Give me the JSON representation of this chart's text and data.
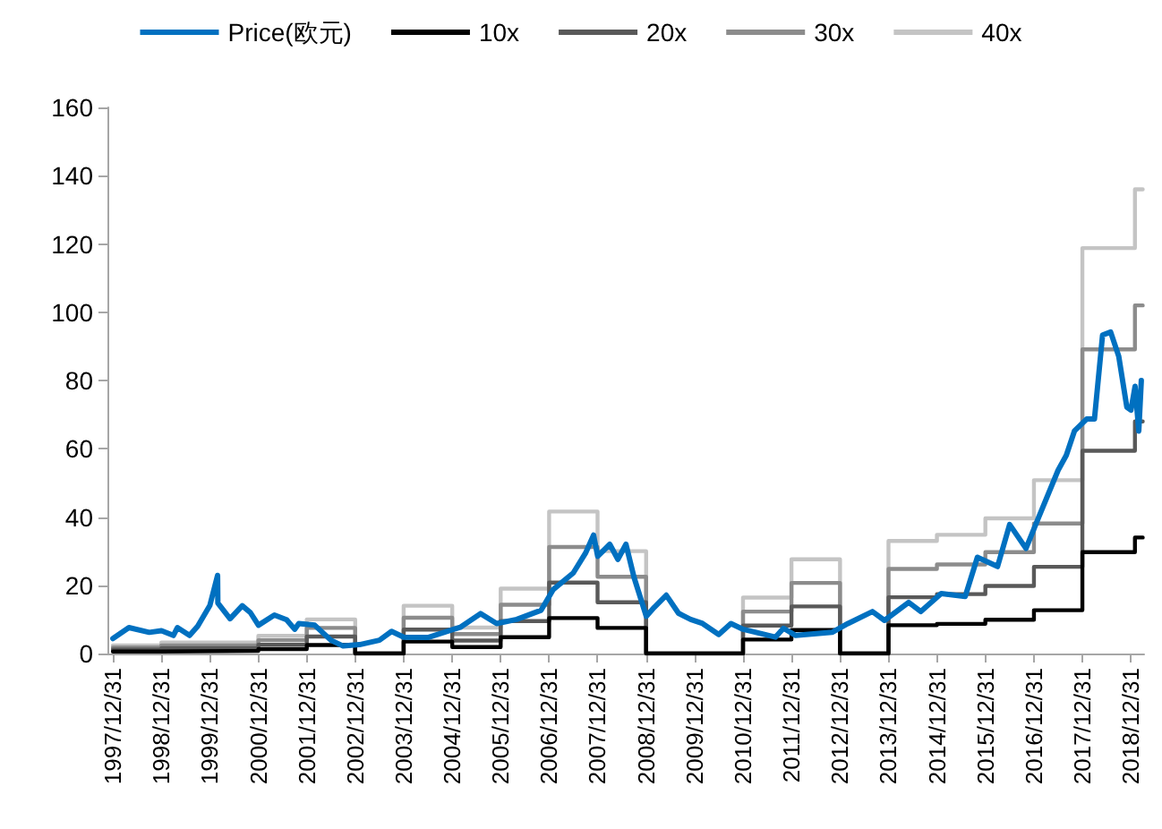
{
  "chart_data": {
    "type": "line",
    "legend": "top",
    "grid": false,
    "marker": "none",
    "line_style": "solid",
    "xlim": [
      "1997-11-20",
      "2019-04-10"
    ],
    "xticks": [
      {
        "value": "1997-12-31",
        "label": "1997/12/31"
      },
      {
        "value": "1998-12-31",
        "label": "1998/12/31"
      },
      {
        "value": "1999-12-31",
        "label": "1999/12/31"
      },
      {
        "value": "2000-12-31",
        "label": "2000/12/31"
      },
      {
        "value": "2001-12-31",
        "label": "2001/12/31"
      },
      {
        "value": "2002-12-31",
        "label": "2002/12/31"
      },
      {
        "value": "2003-12-31",
        "label": "2003/12/31"
      },
      {
        "value": "2004-12-31",
        "label": "2004/12/31"
      },
      {
        "value": "2005-12-31",
        "label": "2005/12/31"
      },
      {
        "value": "2006-12-31",
        "label": "2006/12/31"
      },
      {
        "value": "2007-12-31",
        "label": "2007/12/31"
      },
      {
        "value": "2008-12-31",
        "label": "2008/12/31"
      },
      {
        "value": "2009-12-31",
        "label": "2009/12/31"
      },
      {
        "value": "2010-12-31",
        "label": "2010/12/31"
      },
      {
        "value": "2011-12-31",
        "label": "2011/12/31"
      },
      {
        "value": "2012-12-31",
        "label": "2012/12/31"
      },
      {
        "value": "2013-12-31",
        "label": "2013/12/31"
      },
      {
        "value": "2014-12-31",
        "label": "2014/12/31"
      },
      {
        "value": "2015-12-31",
        "label": "2015/12/31"
      },
      {
        "value": "2016-12-31",
        "label": "2016/12/31"
      },
      {
        "value": "2017-12-31",
        "label": "2017/12/31"
      },
      {
        "value": "2018-12-31",
        "label": "2018/12/31"
      }
    ],
    "ylim": [
      0,
      160
    ],
    "yticks": [
      0,
      20,
      40,
      60,
      80,
      100,
      120,
      140,
      160
    ],
    "series": [
      {
        "name": "Price(欧元)",
        "color": "#0070c0",
        "x": [
          "1997-12-31",
          "1998-05",
          "1998-10",
          "1999-01",
          "1999-04",
          "1999-05",
          "1999-08",
          "1999-10",
          "2000-01",
          "2000-02-28",
          "2000-03",
          "2000-06",
          "2000-09",
          "2000-11",
          "2001-01",
          "2001-05",
          "2001-08",
          "2001-10",
          "2001-11",
          "2002-03",
          "2002-07",
          "2002-10",
          "2003-02",
          "2003-07",
          "2003-10",
          "2004-01",
          "2004-07",
          "2005-03",
          "2005-08",
          "2005-12",
          "2006-05",
          "2006-11",
          "2007-02",
          "2007-07",
          "2007-10",
          "2007-12",
          "2008-01",
          "2008-04",
          "2008-06",
          "2008-08",
          "2008-10",
          "2009-01",
          "2009-03",
          "2009-06",
          "2009-09",
          "2009-12",
          "2010-03",
          "2010-07",
          "2010-10",
          "2011-01",
          "2011-09",
          "2011-11",
          "2012-02",
          "2012-11",
          "2013-03",
          "2013-09",
          "2013-12",
          "2014-06",
          "2014-09",
          "2015-02",
          "2015-08",
          "2015-11",
          "2016-04",
          "2016-07",
          "2016-11",
          "2017-02",
          "2017-07",
          "2017-09",
          "2017-11",
          "2018-02",
          "2018-04",
          "2018-06",
          "2018-08",
          "2018-10",
          "2018-12",
          "2019-01",
          "2019-02",
          "2019-03-01",
          "2019-03-20"
        ],
        "values": [
          4.4,
          7.6,
          6.2,
          6.7,
          5.3,
          7.6,
          5.3,
          8,
          14.1,
          22.9,
          14.8,
          10.2,
          14,
          12,
          8.3,
          11.3,
          9.9,
          7.1,
          8.8,
          8.3,
          3.9,
          2.2,
          2.6,
          3.9,
          6.5,
          4.8,
          4.7,
          7.7,
          11.7,
          8.8,
          10,
          12.7,
          18.8,
          23.6,
          29.4,
          34.7,
          28.5,
          32,
          27.6,
          32,
          22.3,
          10.9,
          13.5,
          17.1,
          11.8,
          10,
          8.8,
          5.6,
          8.8,
          7.1,
          4.8,
          7.4,
          5.3,
          6.2,
          8.8,
          12.3,
          9.7,
          15,
          12.3,
          17.6,
          16.7,
          28.2,
          25.5,
          37.8,
          30.8,
          39.6,
          53.7,
          58.1,
          65.2,
          68.7,
          68.7,
          93.3,
          94.2,
          87.1,
          72.2,
          71.3,
          78.3,
          65.2,
          80
        ]
      },
      {
        "name": "10x",
        "color": "#000000",
        "type": "step",
        "x": [
          "1997-12-31",
          "1998-12-31",
          "2000-12-31",
          "2001-12-31",
          "2002-12-31",
          "2003-12-31",
          "2004-12-31",
          "2005-12-31",
          "2006-12-31",
          "2007-12-31",
          "2008-12-31",
          "2010-12-31",
          "2011-12-31",
          "2012-12-31",
          "2013-12-31",
          "2014-12-31",
          "2015-12-31",
          "2016-12-31",
          "2017-12-31",
          "2019-01-31",
          "2019-03-31"
        ],
        "values": [
          0.6,
          0.8,
          1.3,
          2.5,
          0,
          3.5,
          1.9,
          4.8,
          10.4,
          7.5,
          0,
          4.1,
          6.9,
          0,
          8.3,
          8.7,
          9.9,
          12.7,
          29.7,
          34,
          34
        ]
      },
      {
        "name": "20x",
        "color": "#595959",
        "type": "step",
        "x": [
          "1997-12-31",
          "1998-12-31",
          "2000-12-31",
          "2001-12-31",
          "2002-12-31",
          "2003-12-31",
          "2004-12-31",
          "2005-12-31",
          "2006-12-31",
          "2007-12-31",
          "2008-12-31",
          "2010-12-31",
          "2011-12-31",
          "2012-12-31",
          "2013-12-31",
          "2014-12-31",
          "2015-12-31",
          "2016-12-31",
          "2017-12-31",
          "2019-01-31",
          "2019-03-31"
        ],
        "values": [
          1.2,
          1.6,
          2.6,
          5,
          0,
          7,
          3.8,
          9.5,
          20.8,
          15,
          0,
          8.2,
          13.8,
          0,
          16.5,
          17.4,
          19.8,
          25.4,
          59.4,
          68,
          68
        ]
      },
      {
        "name": "30x",
        "color": "#8c8c8c",
        "type": "step",
        "x": [
          "1997-12-31",
          "1998-12-31",
          "2000-12-31",
          "2001-12-31",
          "2002-12-31",
          "2003-12-31",
          "2004-12-31",
          "2005-12-31",
          "2006-12-31",
          "2007-12-31",
          "2008-12-31",
          "2010-12-31",
          "2011-12-31",
          "2012-12-31",
          "2013-12-31",
          "2014-12-31",
          "2015-12-31",
          "2016-12-31",
          "2017-12-31",
          "2019-01-31",
          "2019-03-31"
        ],
        "values": [
          1.8,
          2.4,
          3.9,
          7.5,
          0,
          10.5,
          5.7,
          14.3,
          31.2,
          22.5,
          0,
          12.3,
          20.7,
          0,
          24.8,
          26.1,
          29.7,
          38.1,
          89.1,
          102,
          102
        ]
      },
      {
        "name": "40x",
        "color": "#c4c4c4",
        "type": "step",
        "x": [
          "1997-12-31",
          "1998-12-31",
          "2000-12-31",
          "2001-12-31",
          "2002-12-31",
          "2003-12-31",
          "2004-12-31",
          "2005-12-31",
          "2006-12-31",
          "2007-12-31",
          "2008-12-31",
          "2010-12-31",
          "2011-12-31",
          "2012-12-31",
          "2013-12-31",
          "2014-12-31",
          "2015-12-31",
          "2016-12-31",
          "2017-12-31",
          "2019-01-31",
          "2019-03-31"
        ],
        "values": [
          2.4,
          3.2,
          5.2,
          10,
          0,
          14,
          7.6,
          19,
          41.6,
          30,
          0,
          16.4,
          27.6,
          0,
          33,
          34.8,
          39.6,
          50.8,
          118.8,
          136,
          136
        ]
      }
    ]
  }
}
